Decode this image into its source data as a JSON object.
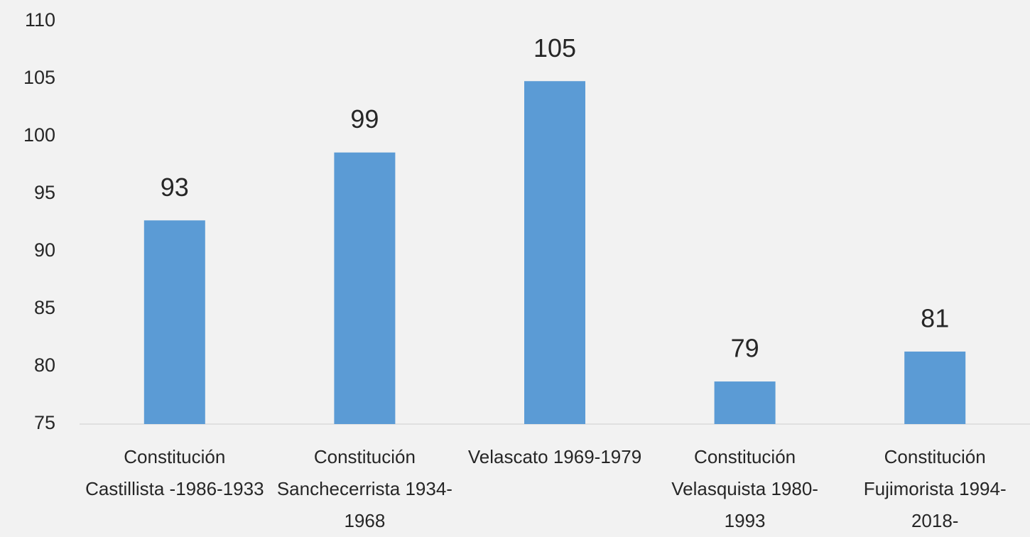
{
  "chart_data": {
    "type": "bar",
    "categories": [
      "Constitución Castillista -1986-1933",
      "Constitución Sanchecerrista 1934-1968",
      "Velascato 1969-1979",
      "Constitución Velasquista 1980-1993",
      "Constitución Fujimorista 1994-2018-"
    ],
    "values": [
      92.7,
      98.6,
      104.8,
      78.7,
      81.3
    ],
    "value_labels": [
      "93",
      "99",
      "105",
      "79",
      "81"
    ],
    "color": "#5b9bd5",
    "ylim": [
      75,
      110
    ],
    "yticks": [
      75,
      80,
      85,
      90,
      95,
      100,
      105,
      110
    ],
    "grid": false
  }
}
